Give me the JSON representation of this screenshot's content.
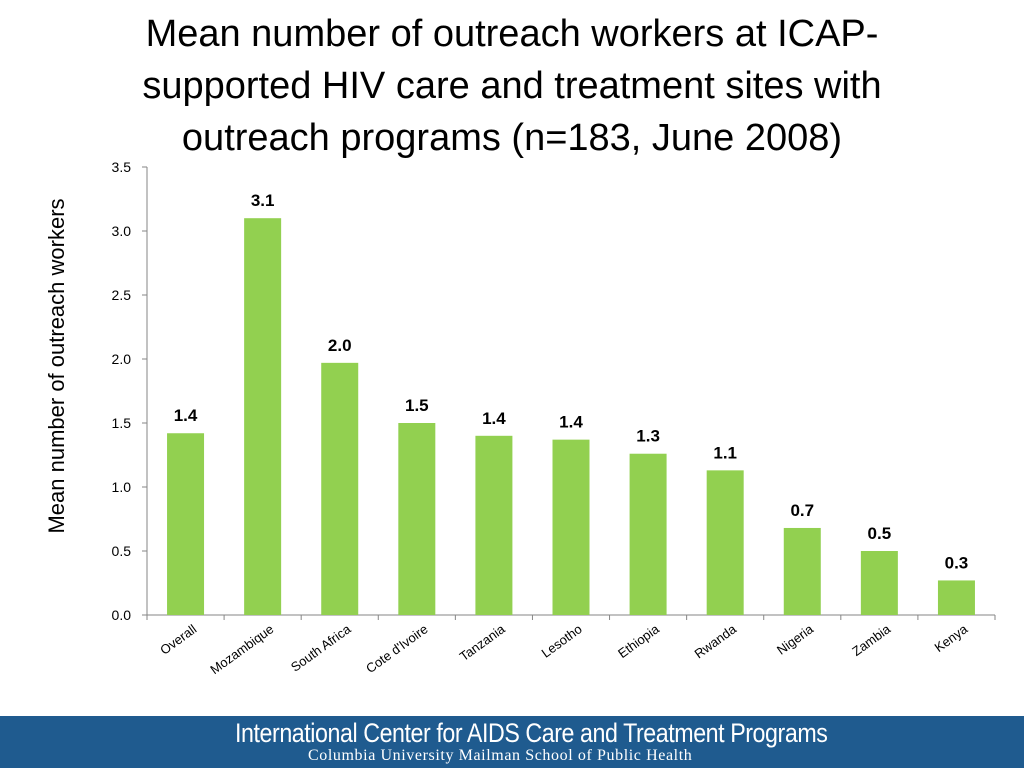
{
  "title_lines": [
    "Mean number of outreach workers at ICAP-",
    "supported HIV care and treatment sites with",
    "outreach programs (n=183, June 2008)"
  ],
  "footer": {
    "title": "International Center for AIDS Care and Treatment Programs",
    "subtitle": "Columbia University Mailman School of Public Health"
  },
  "colors": {
    "bar": "#92d050",
    "footer_bg": "#1f5b8f"
  },
  "chart_data": {
    "type": "bar",
    "title": "Mean number of outreach workers at ICAP-supported HIV care and treatment sites with outreach programs (n=183, June 2008)",
    "xlabel": "",
    "ylabel": "Mean number of outreach workers",
    "ylim": [
      0,
      3.5
    ],
    "yticks": [
      "0.0",
      "0.5",
      "1.0",
      "1.5",
      "2.0",
      "2.5",
      "3.0",
      "3.5"
    ],
    "grid": false,
    "categories": [
      "Overall",
      "Mozambique",
      "South Africa",
      "Cote d'Ivoire",
      "Tanzania",
      "Lesotho",
      "Ethiopia",
      "Rwanda",
      "Nigeria",
      "Zambia",
      "Kenya"
    ],
    "values": [
      1.42,
      3.1,
      1.97,
      1.5,
      1.4,
      1.37,
      1.26,
      1.13,
      0.68,
      0.5,
      0.27
    ],
    "data_labels": [
      "1.4",
      "3.1",
      "2.0",
      "1.5",
      "1.4",
      "1.4",
      "1.3",
      "1.1",
      "0.7",
      "0.5",
      "0.3"
    ]
  }
}
